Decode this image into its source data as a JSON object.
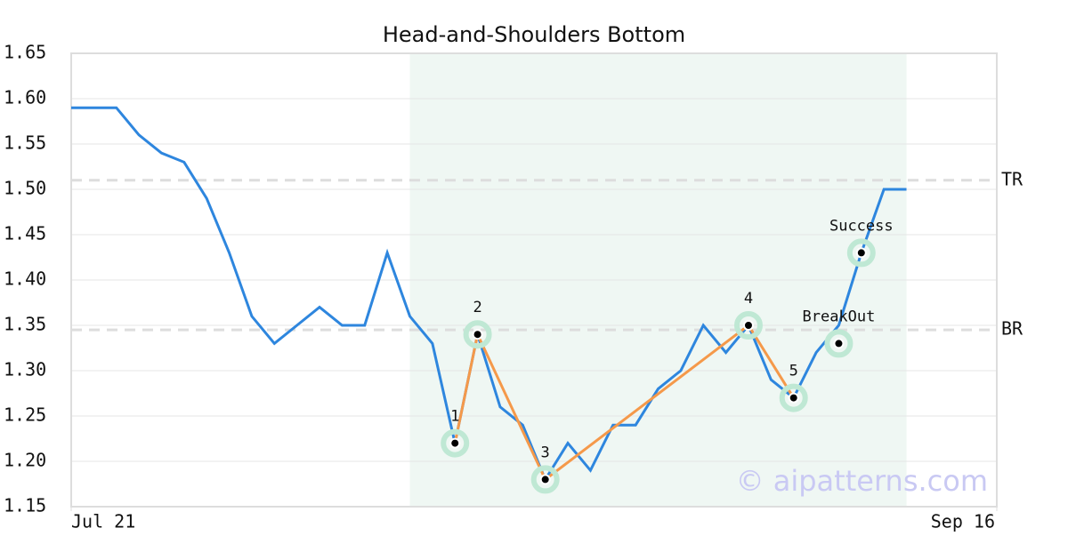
{
  "chart_data": {
    "type": "line",
    "title": "Head-and-Shoulders Bottom",
    "x": [
      0,
      1,
      2,
      3,
      4,
      5,
      6,
      7,
      8,
      9,
      10,
      11,
      12,
      13,
      14,
      15,
      16,
      17,
      18,
      19,
      20,
      21,
      22,
      23,
      24,
      25,
      26,
      27,
      28,
      29,
      30,
      31,
      32,
      33,
      34,
      35,
      36,
      37
    ],
    "values": [
      1.59,
      1.59,
      1.59,
      1.56,
      1.54,
      1.53,
      1.49,
      1.43,
      1.36,
      1.33,
      1.35,
      1.37,
      1.35,
      1.35,
      1.43,
      1.36,
      1.33,
      1.22,
      1.34,
      1.26,
      1.24,
      1.18,
      1.22,
      1.19,
      1.24,
      1.24,
      1.28,
      1.3,
      1.35,
      1.32,
      1.35,
      1.29,
      1.27,
      1.32,
      1.35,
      1.43,
      1.5,
      1.5
    ],
    "color": "#2e86de",
    "xlim": [
      0,
      41
    ],
    "xticks": [
      {
        "value": 0,
        "label": "Jul 21"
      },
      {
        "value": 41,
        "label": "Sep 16"
      }
    ],
    "ylim": [
      1.15,
      1.65
    ],
    "yticks": [
      1.15,
      {
        "value": 1.2,
        "label": "1.20"
      },
      1.25,
      {
        "value": 1.3,
        "label": "1.30"
      },
      1.35,
      {
        "value": 1.4,
        "label": "1.40"
      },
      1.45,
      {
        "value": 1.5,
        "label": "1.50"
      },
      1.55,
      {
        "value": 1.6,
        "label": "1.60"
      },
      1.65
    ],
    "grid": true,
    "highlight_x": [
      15,
      37
    ],
    "reference_lines": [
      {
        "label": "TR",
        "value": 1.51
      },
      {
        "label": "BR",
        "value": 1.345
      }
    ],
    "pattern": {
      "color": "#f5994a",
      "points": [
        {
          "label": "1",
          "x": 17,
          "y": 1.22
        },
        {
          "label": "2",
          "x": 18,
          "y": 1.34
        },
        {
          "label": "3",
          "x": 21,
          "y": 1.18
        },
        {
          "label": "4",
          "x": 30,
          "y": 1.35
        },
        {
          "label": "5",
          "x": 32,
          "y": 1.27
        }
      ]
    },
    "signals": [
      {
        "label": "BreakOut",
        "x": 34,
        "y": 1.33
      },
      {
        "label": "Success",
        "x": 35,
        "y": 1.43
      }
    ],
    "watermark": "© aipatterns.com"
  }
}
